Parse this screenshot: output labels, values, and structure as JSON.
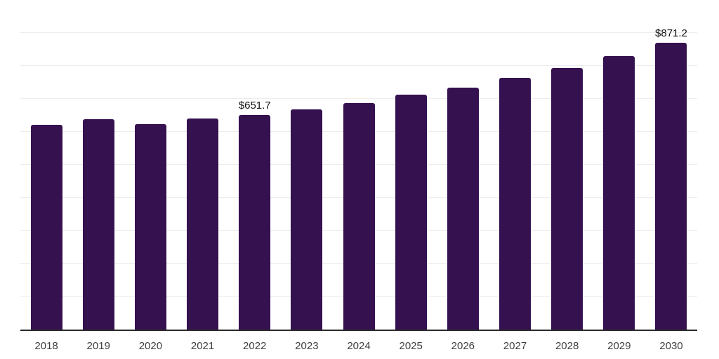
{
  "chart_data": {
    "type": "bar",
    "title": "",
    "xlabel": "",
    "ylabel": "",
    "categories": [
      "2018",
      "2019",
      "2020",
      "2021",
      "2022",
      "2023",
      "2024",
      "2025",
      "2026",
      "2027",
      "2028",
      "2029",
      "2030"
    ],
    "values": [
      620.6,
      637.6,
      622.8,
      639.9,
      651.7,
      668.7,
      687.2,
      711.8,
      734.5,
      763.0,
      793.8,
      830.4,
      871.2
    ],
    "data_labels": {
      "2022": "$651.7",
      "2030": "$871.2"
    },
    "ylim": [
      0,
      1000
    ],
    "gridline_step": 100,
    "grid": "horizontal-only",
    "legend": "none",
    "y_axis_ticks_visible": false,
    "colors": {
      "bar": "#351150",
      "gridline": "#ededed",
      "axis_line": "#2b2b2b",
      "tick_label": "#3f3f3f",
      "data_label": "#111111",
      "background": "#ffffff"
    }
  }
}
